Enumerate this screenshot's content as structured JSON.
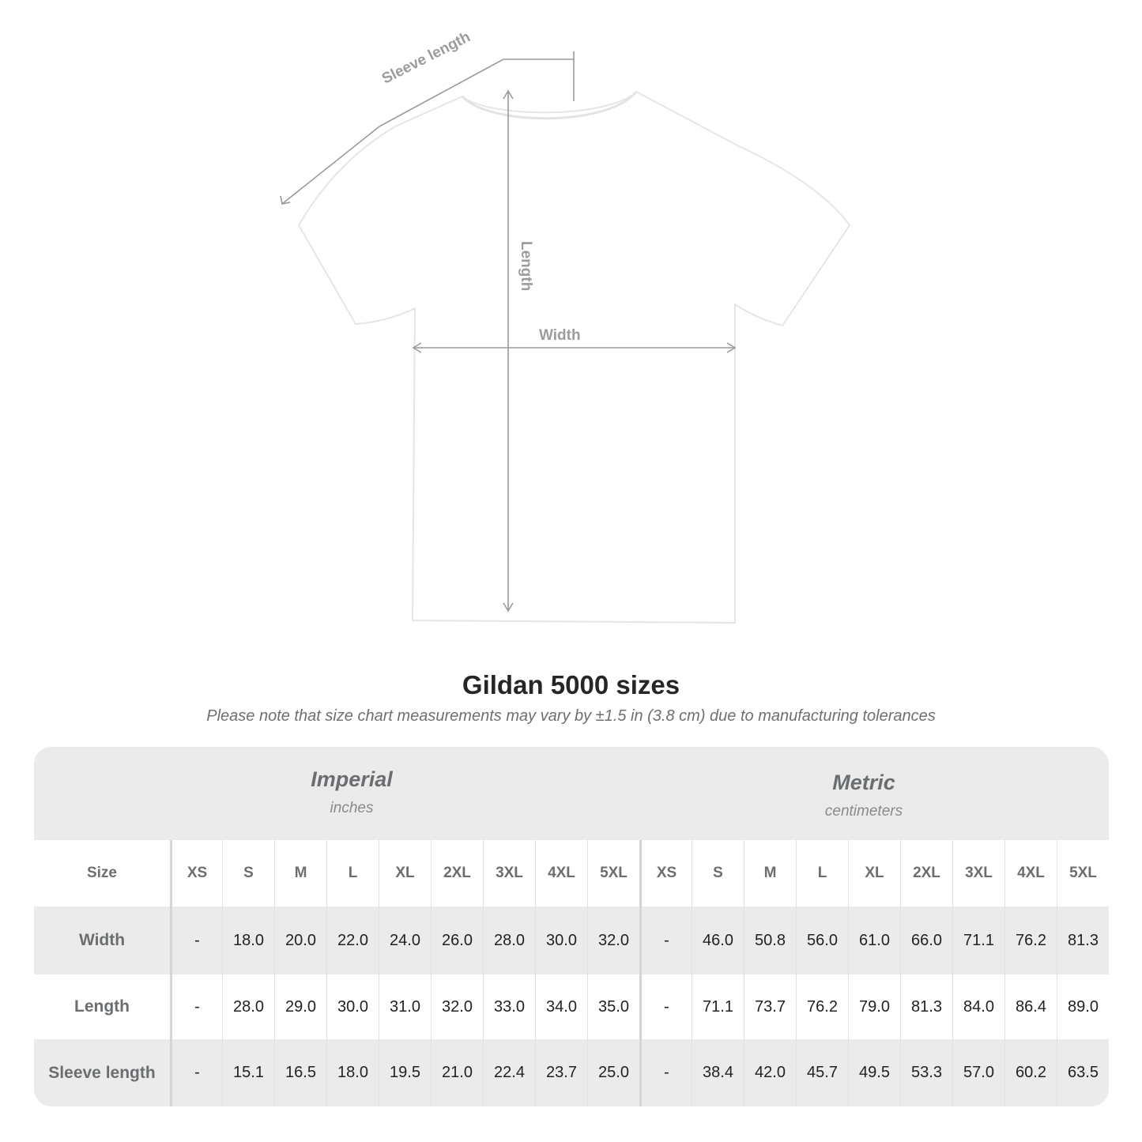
{
  "diagram": {
    "labels": {
      "sleeve": "Sleeve length",
      "length": "Length",
      "width": "Width"
    },
    "line_color": "#9a9a9a"
  },
  "title": "Gildan 5000 sizes",
  "subtitle": "Please note that size chart measurements may vary by ±1.5 in (3.8 cm) due to manufacturing tolerances",
  "table": {
    "imperial": {
      "name": "Imperial",
      "unit": "inches"
    },
    "metric": {
      "name": "Metric",
      "unit": "centimeters"
    },
    "size_label": "Size",
    "sizes": [
      "XS",
      "S",
      "M",
      "L",
      "XL",
      "2XL",
      "3XL",
      "4XL",
      "5XL"
    ],
    "rows": [
      {
        "label": "Width",
        "imperial": [
          "-",
          "18.0",
          "20.0",
          "22.0",
          "24.0",
          "26.0",
          "28.0",
          "30.0",
          "32.0"
        ],
        "metric": [
          "-",
          "46.0",
          "50.8",
          "56.0",
          "61.0",
          "66.0",
          "71.1",
          "76.2",
          "81.3"
        ]
      },
      {
        "label": "Length",
        "imperial": [
          "-",
          "28.0",
          "29.0",
          "30.0",
          "31.0",
          "32.0",
          "33.0",
          "34.0",
          "35.0"
        ],
        "metric": [
          "-",
          "71.1",
          "73.7",
          "76.2",
          "79.0",
          "81.3",
          "84.0",
          "86.4",
          "89.0"
        ]
      },
      {
        "label": "Sleeve length",
        "imperial": [
          "-",
          "15.1",
          "16.5",
          "18.0",
          "19.5",
          "21.0",
          "22.4",
          "23.7",
          "25.0"
        ],
        "metric": [
          "-",
          "38.4",
          "42.0",
          "45.7",
          "49.5",
          "53.3",
          "57.0",
          "60.2",
          "63.5"
        ]
      }
    ],
    "colors": {
      "header_bg": "#ebebeb",
      "label_text": "#6b6e70"
    }
  }
}
